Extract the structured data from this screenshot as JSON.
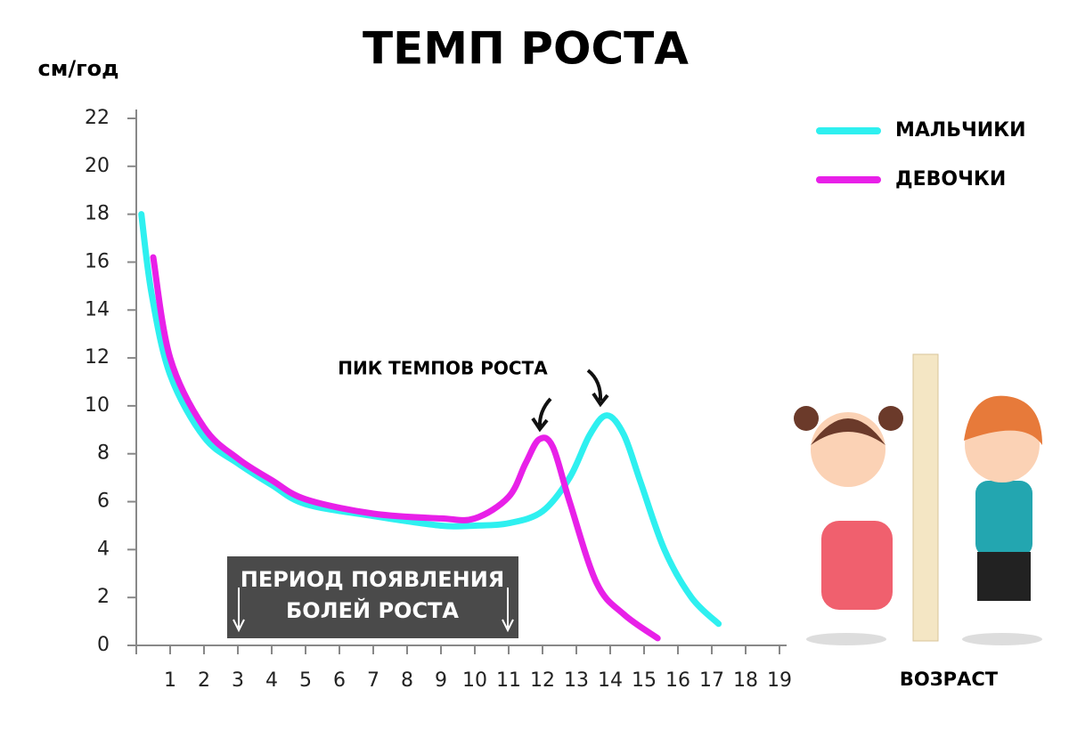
{
  "chart_data": {
    "type": "line",
    "title": "ТЕМП РОСТА",
    "y_label": "см/год",
    "x_label": "ВОЗРАСТ",
    "peak_label": "ПИК ТЕМПОВ РОСТА",
    "period_label": [
      "ПЕРИОД ПОЯВЛЕНИЯ",
      "БОЛЕЙ РОСТА"
    ],
    "xlim": [
      0,
      19
    ],
    "xticks": [
      1,
      2,
      3,
      4,
      5,
      6,
      7,
      8,
      9,
      10,
      11,
      12,
      13,
      14,
      15,
      16,
      17,
      18,
      19
    ],
    "ylim": [
      0,
      22
    ],
    "yticks": [
      0,
      2,
      4,
      6,
      8,
      10,
      12,
      14,
      16,
      18,
      20,
      22
    ],
    "legend_position": "upper right",
    "series": [
      {
        "name": "МАЛЬЧИКИ",
        "color": "#2ef0f0",
        "x": [
          0.15,
          0.45,
          1,
          2,
          3,
          4,
          5,
          7,
          9,
          10,
          11,
          12,
          12.8,
          13.4,
          13.9,
          14.4,
          14.9,
          15.6,
          16.4,
          17.2
        ],
        "values": [
          18,
          14.7,
          11.3,
          8.7,
          7.6,
          6.7,
          5.9,
          5.4,
          5.0,
          5.0,
          5.1,
          5.6,
          7.0,
          8.8,
          9.6,
          8.8,
          6.8,
          4.0,
          2.0,
          0.9
        ]
      },
      {
        "name": "ДЕВОЧКИ",
        "color": "#e820e8",
        "x": [
          0.5,
          1,
          2,
          3,
          4,
          5,
          7,
          9,
          10,
          11,
          11.5,
          11.9,
          12.3,
          12.8,
          13.6,
          14.4,
          15.4
        ],
        "values": [
          16.2,
          12.0,
          9.1,
          7.8,
          6.9,
          6.1,
          5.5,
          5.3,
          5.3,
          6.2,
          7.6,
          8.6,
          8.3,
          6.0,
          2.6,
          1.3,
          0.3
        ]
      }
    ]
  }
}
